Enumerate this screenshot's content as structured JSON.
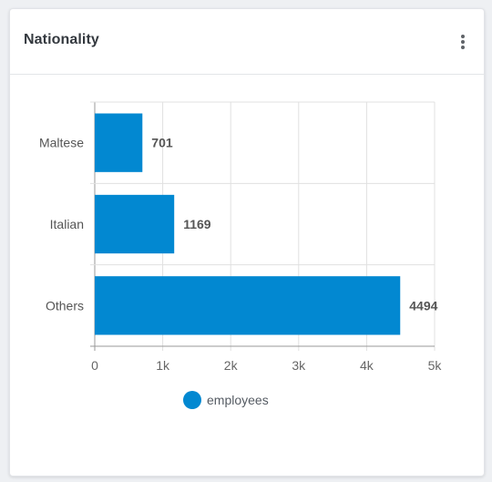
{
  "card": {
    "title": "Nationality",
    "menu_icon": "more-vertical-icon"
  },
  "colors": {
    "bar": "#0288d1",
    "grid": "#e0e0e0",
    "axis": "#999999",
    "tick_text": "#666666",
    "label_text": "#555555"
  },
  "legend": {
    "label": "employees",
    "color": "#0288d1"
  },
  "chart_data": {
    "type": "bar",
    "orientation": "horizontal",
    "title": "Nationality",
    "categories": [
      "Maltese",
      "Italian",
      "Others"
    ],
    "series": [
      {
        "name": "employees",
        "values": [
          701,
          1169,
          4494
        ]
      }
    ],
    "data_labels": [
      "701",
      "1169",
      "4494"
    ],
    "xlim": [
      0,
      5000
    ],
    "x_ticks": [
      0,
      1000,
      2000,
      3000,
      4000,
      5000
    ],
    "x_tick_labels": [
      "0",
      "1k",
      "2k",
      "3k",
      "4k",
      "5k"
    ],
    "xlabel": "",
    "ylabel": "",
    "grid": true,
    "legend_position": "bottom"
  }
}
